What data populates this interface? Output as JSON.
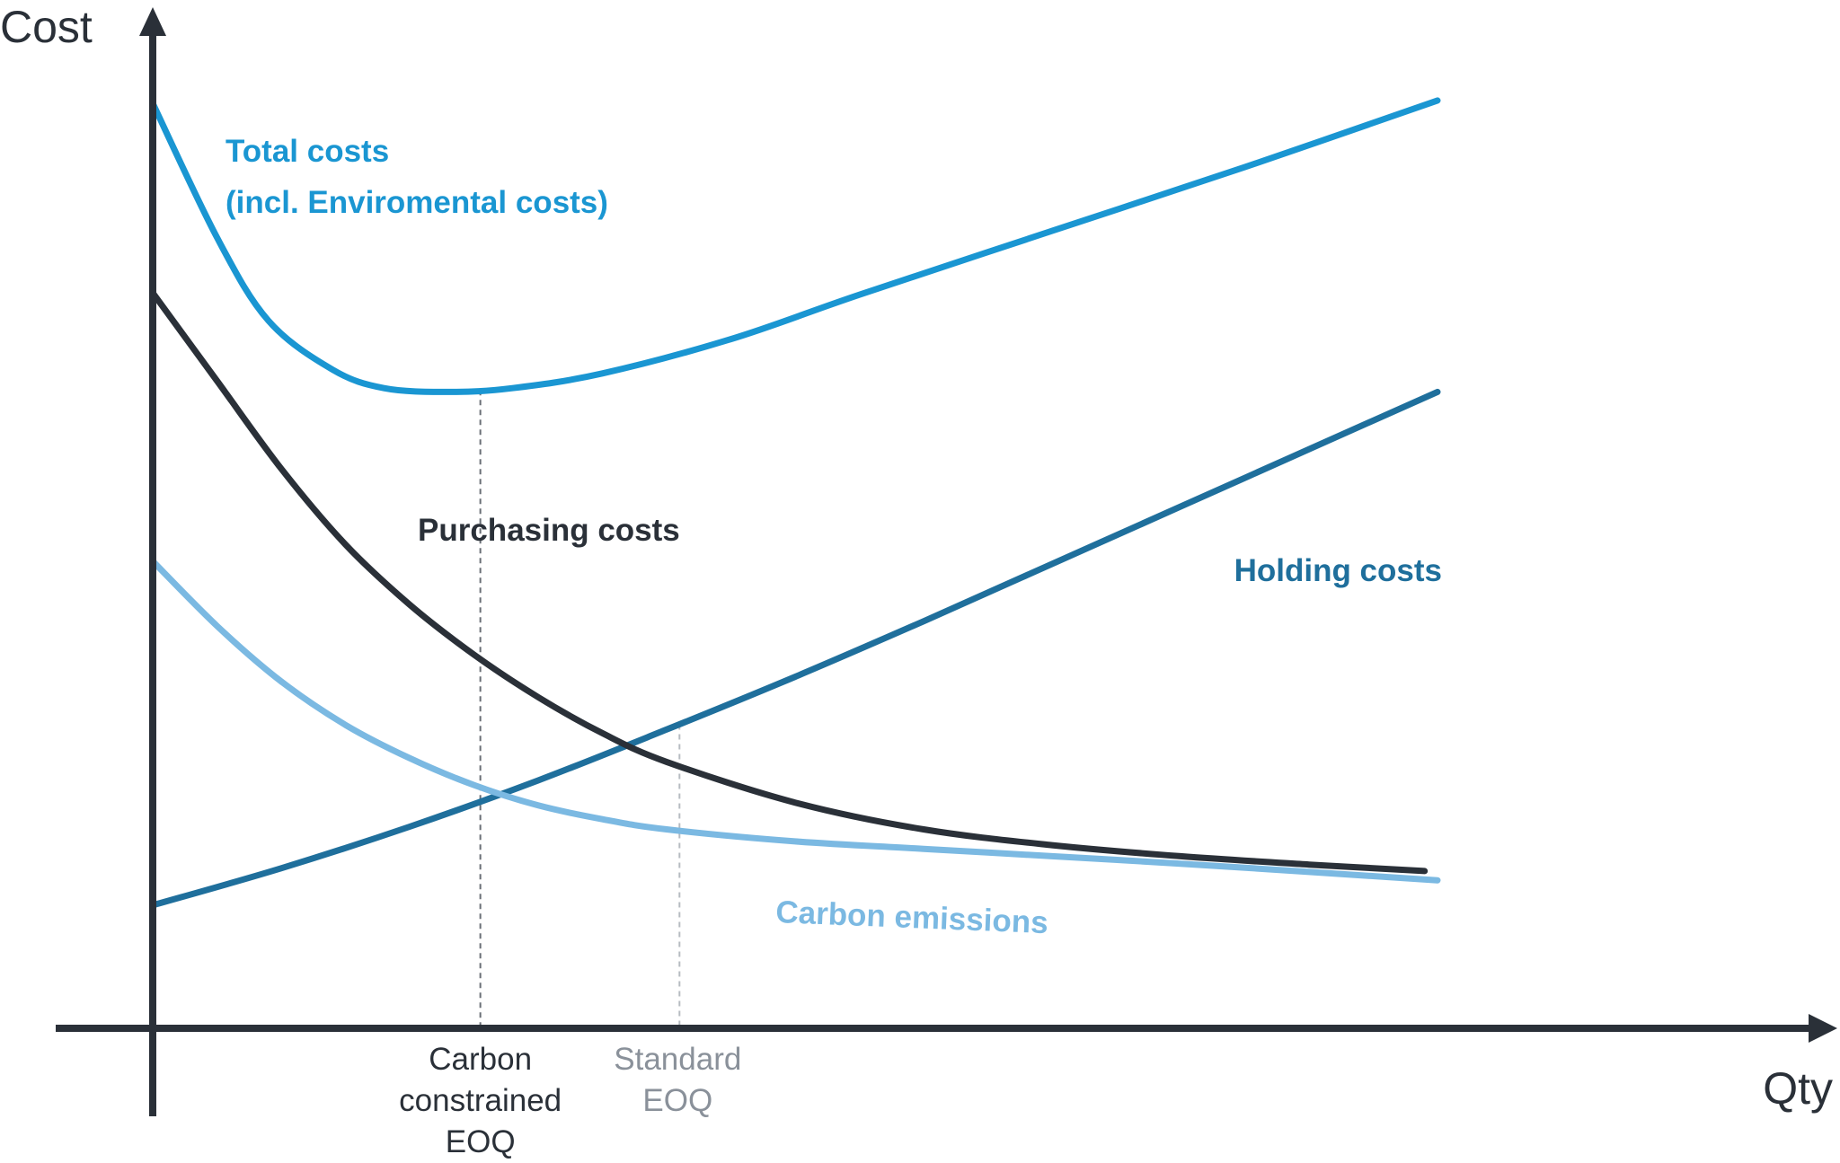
{
  "chart_data": {
    "type": "line",
    "title": "",
    "ylabel": "Cost",
    "xlabel": "Qty",
    "grid": false,
    "xlim": [
      0,
      100
    ],
    "ylim": [
      0,
      100
    ],
    "colors": {
      "axis": "#2a3038",
      "total": "#1a96d2",
      "purchasing": "#2a3038",
      "holding": "#1f6f9c",
      "carbon": "#7bb9e2",
      "guide_carbon": "#6a6f76",
      "guide_standard": "#b7bcc2",
      "tick_carbon": "#2a3038",
      "tick_standard": "#8a919a"
    },
    "series": [
      {
        "key": "total",
        "name": "Total costs",
        "name_line2": "(incl. Enviromental costs)",
        "x": [
          0,
          5,
          9,
          14,
          18,
          23,
          28,
          35,
          45,
          55,
          70,
          85,
          100
        ],
        "values": [
          100,
          85.5,
          76.5,
          71.2,
          69.2,
          68.8,
          69.2,
          70.8,
          74.5,
          79.3,
          86.2,
          93.1,
          100.3
        ]
      },
      {
        "key": "purchasing",
        "name": "Purchasing costs",
        "x": [
          0,
          5,
          10,
          15,
          20,
          25,
          30,
          35,
          40,
          50,
          60,
          70,
          80,
          90,
          99
        ],
        "values": [
          79.5,
          70,
          60.5,
          52.3,
          45.8,
          40.4,
          35.8,
          31.9,
          28.8,
          24.4,
          21.5,
          19.8,
          18.6,
          17.7,
          17
        ]
      },
      {
        "key": "holding",
        "name": "Holding costs",
        "x": [
          0,
          10,
          20,
          30,
          40,
          50,
          60,
          70,
          80,
          90,
          100
        ],
        "values": [
          13.3,
          17.3,
          21.8,
          26.8,
          32.3,
          38,
          44,
          50.2,
          56.4,
          62.6,
          68.8
        ]
      },
      {
        "key": "carbon",
        "name": "Carbon emissions",
        "x": [
          0,
          5,
          10,
          15,
          20,
          25,
          30,
          35,
          40,
          50,
          60,
          70,
          80,
          90,
          100
        ],
        "values": [
          50.5,
          43.5,
          37.5,
          32.8,
          29.2,
          26.3,
          24.1,
          22.6,
          21.5,
          20.2,
          19.4,
          18.6,
          17.8,
          16.9,
          16
        ]
      }
    ],
    "annotations": [
      {
        "key": "carbon_eoq",
        "lines": [
          "Carbon",
          "constrained",
          "EOQ"
        ],
        "x": 25.5
      },
      {
        "key": "standard_eoq",
        "lines": [
          "Standard",
          "EOQ"
        ],
        "x": 41
      }
    ]
  }
}
